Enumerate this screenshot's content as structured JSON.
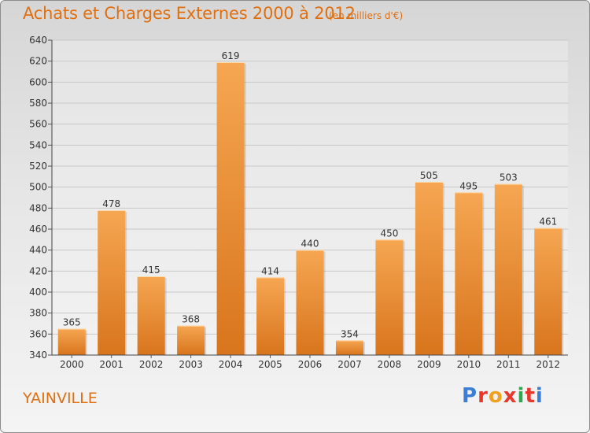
{
  "header": {
    "title": "Achats et Charges Externes 2000 à 2012",
    "subtitle": "(en milliers d'€)"
  },
  "footer": {
    "commune": "YAINVILLE",
    "brand": "Proxiti",
    "brand_colors": [
      "#3a7fd5",
      "#e8382c",
      "#f0a01f",
      "#e8382c",
      "#2fa84f",
      "#e8382c",
      "#3a7fd5"
    ]
  },
  "colors": {
    "bar_top": "#f6a652",
    "bar_bottom": "#d8751d",
    "accent": "#e06f10",
    "grid": "#c8c8c8"
  },
  "chart_data": {
    "type": "bar",
    "categories": [
      "2000",
      "2001",
      "2002",
      "2003",
      "2004",
      "2005",
      "2006",
      "2007",
      "2008",
      "2009",
      "2010",
      "2011",
      "2012"
    ],
    "values": [
      365,
      478,
      415,
      368,
      619,
      414,
      440,
      354,
      450,
      505,
      495,
      503,
      461
    ],
    "ylim": [
      340,
      640
    ],
    "yticks": [
      340,
      360,
      380,
      400,
      420,
      440,
      460,
      480,
      500,
      520,
      540,
      560,
      580,
      600,
      620,
      640
    ],
    "grid": true,
    "data_labels": true,
    "title": "Achats et Charges Externes 2000 à 2012",
    "xlabel": "",
    "ylabel": ""
  }
}
